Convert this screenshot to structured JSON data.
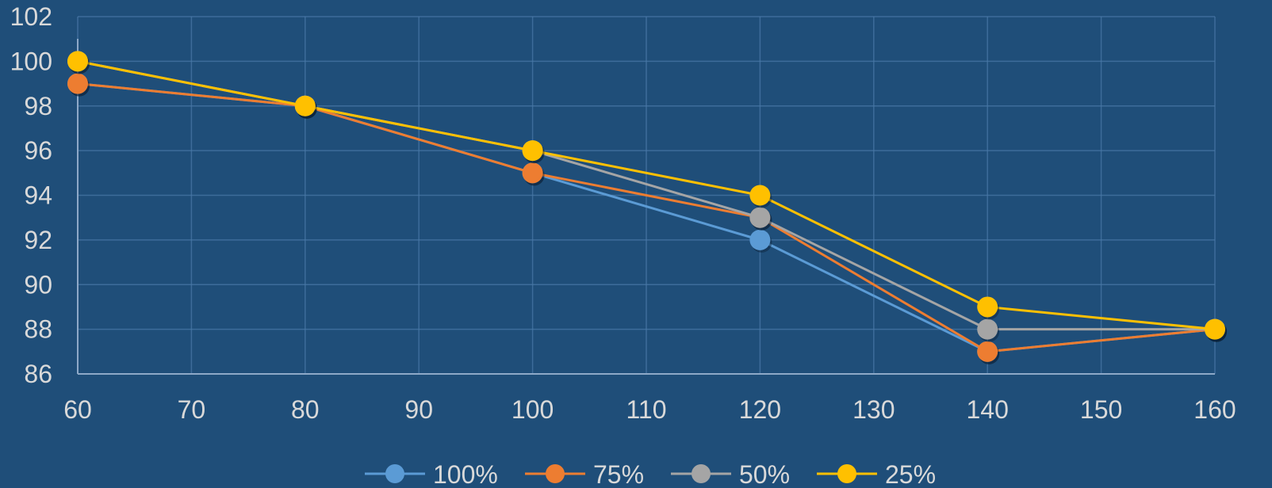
{
  "chart_data": {
    "type": "line",
    "x": [
      60,
      80,
      100,
      120,
      140,
      160
    ],
    "xlim": [
      60,
      160
    ],
    "ylim": [
      86,
      102
    ],
    "x_ticks": [
      60,
      70,
      80,
      90,
      100,
      110,
      120,
      130,
      140,
      150,
      160
    ],
    "y_ticks": [
      86,
      88,
      90,
      92,
      94,
      96,
      98,
      100,
      102
    ],
    "grid": true,
    "legend_position": "bottom",
    "series": [
      {
        "name": "100%",
        "color": "#5b9bd5",
        "values": [
          99,
          98,
          95,
          92,
          87,
          88
        ]
      },
      {
        "name": "75%",
        "color": "#ed7d31",
        "values": [
          99,
          98,
          95,
          93,
          87,
          88
        ]
      },
      {
        "name": "50%",
        "color": "#a5a5a5",
        "values": [
          100,
          98,
          96,
          93,
          88,
          88
        ]
      },
      {
        "name": "25%",
        "color": "#ffc000",
        "values": [
          100,
          98,
          96,
          94,
          89,
          88
        ]
      }
    ],
    "colors": {
      "background": "#1f4e79",
      "grid": "#4a7aa8",
      "axis": "#8ea9c8",
      "text": "#d9d9d9"
    }
  }
}
